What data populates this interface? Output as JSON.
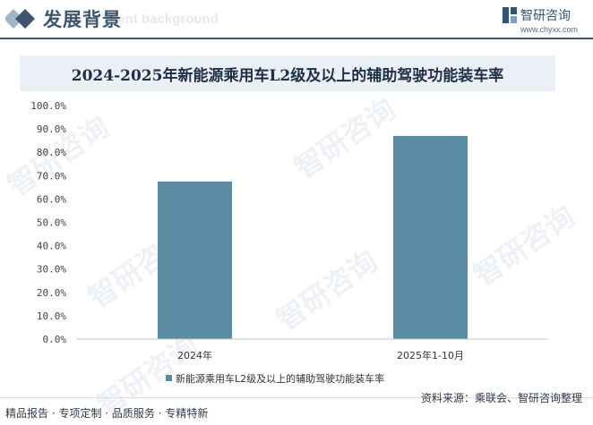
{
  "header": {
    "title": "发展背景",
    "subtitle": "ment background"
  },
  "logo": {
    "name": "智研咨询",
    "url": "www.chyxx.com"
  },
  "watermark": "智研咨询",
  "chart_data": {
    "type": "bar",
    "title": "2024-2025年新能源乘用车L2级及以上的辅助驾驶功能装车率",
    "categories": [
      "2024年",
      "2025年1-10月"
    ],
    "series": [
      {
        "name": "新能源乘用车L2级及以上的辅助驾驶功能装车率",
        "values": [
          67.5,
          87.0
        ]
      }
    ],
    "ylim": [
      0,
      100
    ],
    "yticks": [
      "0.0%",
      "10.0%",
      "20.0%",
      "30.0%",
      "40.0%",
      "50.0%",
      "60.0%",
      "70.0%",
      "80.0%",
      "90.0%",
      "100.0%"
    ],
    "xlabel": "",
    "ylabel": "",
    "grid": false,
    "legend_position": "bottom",
    "colors": {
      "bar": "#5a8ca3",
      "axis": "#c6c6c6"
    }
  },
  "footer": {
    "services": "精品报告 · 专项定制 · 品质服务 · 专精特新",
    "source": "资料来源：乘联会、智研咨询整理"
  }
}
